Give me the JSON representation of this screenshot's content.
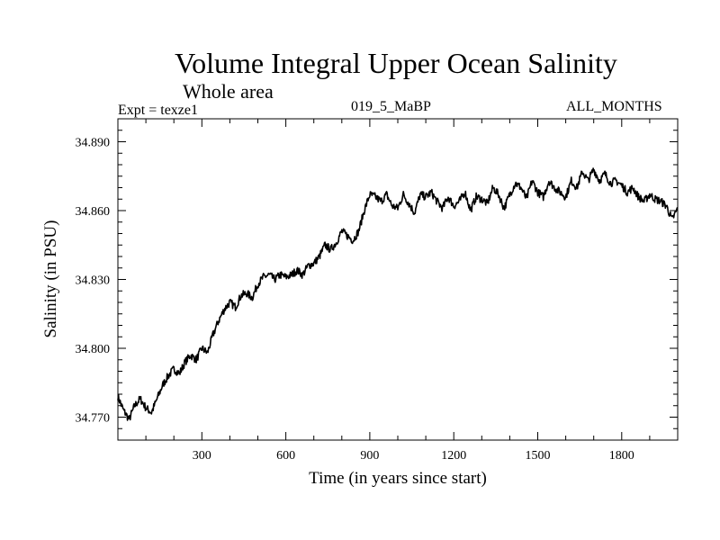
{
  "chart_data": {
    "type": "line",
    "title": "Volume Integral Upper Ocean Salinity",
    "subtitle": "Whole area",
    "annotations": {
      "left": "Expt = texze1",
      "center": "019_5_MaBP",
      "right": "ALL_MONTHS"
    },
    "xlabel": "Time (in years since start)",
    "ylabel": "Salinity (in PSU)",
    "xlim": [
      0,
      2000
    ],
    "ylim": [
      34.76,
      34.9
    ],
    "xticks": [
      300,
      600,
      900,
      1200,
      1500,
      1800
    ],
    "xtick_labels": [
      "300",
      "600",
      "900",
      "1200",
      "1500",
      "1800"
    ],
    "yticks": [
      34.77,
      34.8,
      34.83,
      34.86,
      34.89
    ],
    "ytick_labels": [
      "34.770",
      "34.800",
      "34.830",
      "34.860",
      "34.890"
    ],
    "series": [
      {
        "name": "Salinity",
        "x": [
          0,
          20,
          40,
          60,
          80,
          100,
          120,
          140,
          160,
          180,
          200,
          220,
          240,
          260,
          280,
          300,
          320,
          340,
          360,
          380,
          400,
          420,
          440,
          460,
          480,
          500,
          520,
          540,
          560,
          580,
          600,
          620,
          640,
          660,
          680,
          700,
          720,
          740,
          760,
          780,
          800,
          820,
          840,
          860,
          880,
          900,
          920,
          940,
          960,
          980,
          1000,
          1020,
          1040,
          1060,
          1080,
          1100,
          1120,
          1140,
          1160,
          1180,
          1200,
          1220,
          1240,
          1260,
          1280,
          1300,
          1320,
          1340,
          1360,
          1380,
          1400,
          1420,
          1440,
          1460,
          1480,
          1500,
          1520,
          1540,
          1560,
          1580,
          1600,
          1620,
          1640,
          1660,
          1680,
          1700,
          1720,
          1740,
          1760,
          1780,
          1800,
          1820,
          1840,
          1860,
          1880,
          1900,
          1920,
          1940,
          1960,
          1980,
          2000
        ],
        "values": [
          34.779,
          34.773,
          34.769,
          34.775,
          34.778,
          34.774,
          34.772,
          34.778,
          34.784,
          34.788,
          34.791,
          34.789,
          34.794,
          34.797,
          34.795,
          34.8,
          34.798,
          34.806,
          34.812,
          34.817,
          34.82,
          34.818,
          34.823,
          34.824,
          34.822,
          34.828,
          34.831,
          34.832,
          34.83,
          34.832,
          34.831,
          34.832,
          34.834,
          34.832,
          34.836,
          34.837,
          34.84,
          34.845,
          34.843,
          34.846,
          34.851,
          34.849,
          34.847,
          34.851,
          34.86,
          34.867,
          34.866,
          34.864,
          34.867,
          34.862,
          34.861,
          34.867,
          34.863,
          34.859,
          34.867,
          34.866,
          34.868,
          34.864,
          34.861,
          34.866,
          34.862,
          34.864,
          34.868,
          34.86,
          34.866,
          34.865,
          34.863,
          34.87,
          34.867,
          34.861,
          34.867,
          34.872,
          34.87,
          34.865,
          34.873,
          34.868,
          34.866,
          34.873,
          34.87,
          34.868,
          34.866,
          34.873,
          34.87,
          34.877,
          34.873,
          34.878,
          34.873,
          34.876,
          34.872,
          34.873,
          34.871,
          34.868,
          34.87,
          34.866,
          34.864,
          34.867,
          34.865,
          34.864,
          34.862,
          34.856,
          34.861
        ]
      }
    ],
    "colors": {
      "line": "#000000",
      "axes": "#000000",
      "background": "#ffffff"
    }
  }
}
